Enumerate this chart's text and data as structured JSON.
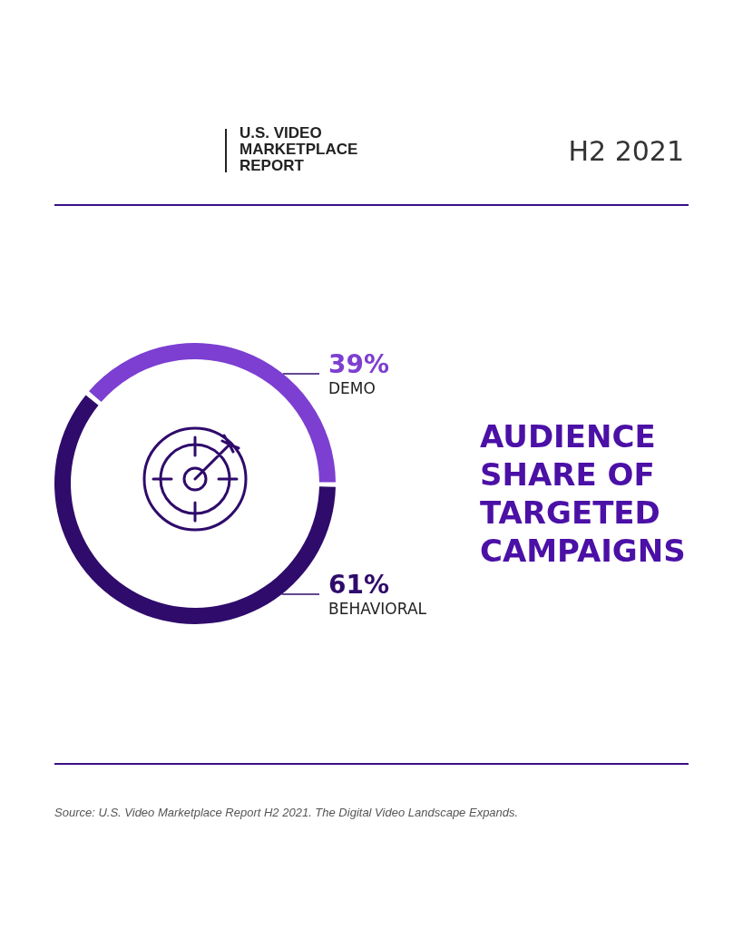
{
  "chart_data": {
    "type": "donut",
    "title": "AUDIENCE SHARE OF TARGETED CAMPAIGNS",
    "subtitle": "H2 2021",
    "categories": [
      "DEMO",
      "BEHAVIORAL"
    ],
    "values": [
      39,
      61
    ],
    "colors": [
      "#7c3fd1",
      "#2f0b6b"
    ],
    "value_labels": [
      "39%",
      "61%"
    ],
    "annotations": [
      "U.S. VIDEO MARKETPLACE REPORT",
      "Source: U.S. Video Marketplace Report H2 2021. The Digital Video Landscape Expands."
    ]
  }
}
